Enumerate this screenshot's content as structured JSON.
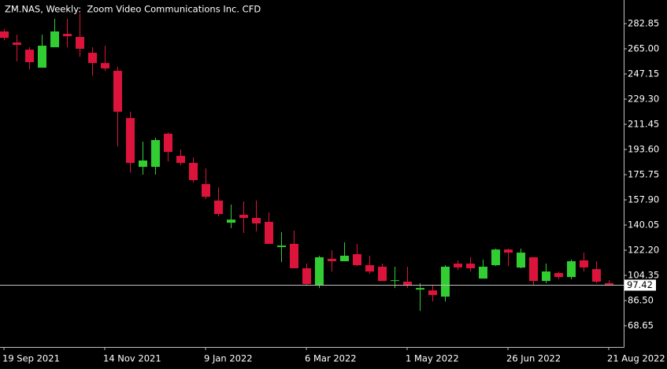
{
  "chart_data": {
    "type": "candlestick",
    "title": "ZM.NAS, Weekly:  Zoom Video Communications Inc. CFD",
    "categories": [
      "19 Sep 2021",
      null,
      null,
      null,
      null,
      null,
      null,
      null,
      "14 Nov 2021",
      null,
      null,
      null,
      null,
      null,
      null,
      null,
      "9 Jan 2022",
      null,
      null,
      null,
      null,
      null,
      null,
      null,
      "6 Mar 2022",
      null,
      null,
      null,
      null,
      null,
      null,
      null,
      "1 May 2022",
      null,
      null,
      null,
      null,
      null,
      null,
      null,
      "26 Jun 2022",
      null,
      null,
      null,
      null,
      null,
      null,
      null,
      "21 Aug 2022"
    ],
    "open": [
      277.3,
      269.5,
      264.4,
      251.6,
      266.1,
      275.6,
      273.4,
      262.2,
      254.9,
      249.4,
      215.9,
      181.3,
      181.3,
      204.8,
      189.1,
      184.1,
      169.1,
      157.4,
      141.7,
      147.3,
      145.1,
      142.3,
      124.4,
      126.7,
      109.4,
      97.6,
      116.1,
      114.4,
      119.4,
      111.6,
      110.5,
      100.4,
      99.9,
      94.3,
      93.7,
      89.3,
      112.7,
      112.7,
      102.1,
      111.6,
      122.7,
      109.9,
      117.2,
      100.4,
      106.0,
      103.2,
      115.0,
      108.8,
      98.8
    ],
    "high": [
      279.0,
      275.0,
      266.1,
      275.0,
      286.2,
      286.2,
      290.1,
      266.1,
      267.2,
      252.2,
      220.4,
      199.2,
      202.0,
      205.9,
      193.6,
      188.0,
      180.2,
      166.8,
      154.6,
      156.8,
      157.4,
      149.0,
      135.0,
      136.1,
      112.7,
      118.3,
      122.2,
      127.8,
      126.7,
      118.3,
      112.7,
      110.5,
      110.5,
      98.8,
      97.6,
      111.6,
      115.0,
      117.2,
      115.5,
      123.3,
      123.3,
      123.3,
      117.2,
      112.7,
      107.1,
      115.5,
      120.5,
      114.4,
      100.9
    ],
    "low": [
      271.0,
      256.1,
      250.5,
      251.6,
      266.1,
      266.1,
      259.4,
      246.0,
      249.4,
      195.8,
      177.4,
      175.75,
      175.75,
      185.2,
      182.4,
      170.2,
      158.5,
      146.2,
      137.8,
      134.5,
      135.6,
      126.7,
      113.8,
      109.4,
      97.6,
      95.4,
      107.1,
      114.4,
      111.0,
      105.5,
      100.4,
      95.4,
      95.4,
      79.2,
      85.9,
      85.9,
      108.3,
      107.1,
      102.1,
      111.0,
      111.0,
      109.4,
      97.6,
      98.8,
      101.6,
      101.6,
      107.1,
      98.8,
      97.1
    ],
    "close": [
      272.8,
      267.8,
      255.5,
      267.2,
      277.3,
      273.9,
      265.0,
      254.9,
      251.1,
      220.4,
      184.1,
      185.8,
      200.3,
      191.9,
      184.1,
      171.9,
      160.1,
      147.9,
      143.9,
      145.1,
      141.2,
      126.7,
      125.5,
      109.4,
      98.2,
      117.2,
      114.4,
      118.3,
      111.6,
      107.1,
      100.4,
      100.9,
      97.1,
      95.4,
      90.4,
      110.5,
      110.0,
      109.4,
      110.5,
      122.7,
      120.5,
      120.5,
      100.4,
      107.1,
      103.2,
      114.4,
      110.0,
      99.9,
      97.4
    ],
    "colors": {
      "up": "#32cd32",
      "down": "#dc143c"
    },
    "current_price": 97.42,
    "ylim": [
      53.6,
      299.6
    ],
    "yticks": [
      {
        "value": 68.65,
        "label": "68.65"
      },
      {
        "value": 86.5,
        "label": "86.50"
      },
      104.35,
      {
        "value": 122.2,
        "label": "122.20"
      },
      140.05,
      {
        "value": 157.9,
        "label": "157.90"
      },
      175.75,
      {
        "value": 193.6,
        "label": "193.60"
      },
      211.45,
      {
        "value": 229.3,
        "label": "229.30"
      },
      {
        "value": 247.15,
        "label": "247.15"
      },
      {
        "value": 265,
        "label": "265.00"
      },
      282.85
    ],
    "grid": false
  }
}
